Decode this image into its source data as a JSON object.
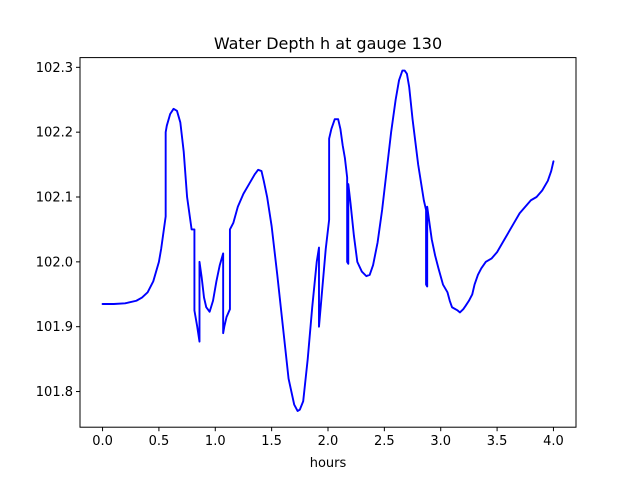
{
  "chart_data": {
    "type": "line",
    "title": "Water Depth h at gauge 130",
    "xlabel": "hours",
    "ylabel": "",
    "xlim": [
      -0.2,
      4.2
    ],
    "ylim": [
      101.745,
      102.315
    ],
    "xticks": [
      0.0,
      0.5,
      1.0,
      1.5,
      2.0,
      2.5,
      3.0,
      3.5,
      4.0
    ],
    "xtick_labels": [
      "0.0",
      "0.5",
      "1.0",
      "1.5",
      "2.0",
      "2.5",
      "3.0",
      "3.5",
      "4.0"
    ],
    "yticks": [
      101.8,
      101.9,
      102.0,
      102.1,
      102.2,
      102.3
    ],
    "ytick_labels": [
      "101.8",
      "101.9",
      "102.0",
      "102.1",
      "102.2",
      "102.3"
    ],
    "grid": false,
    "series": [
      {
        "color": "#0000ff",
        "x": [
          0.0,
          0.1,
          0.2,
          0.3,
          0.35,
          0.4,
          0.45,
          0.5,
          0.52,
          0.54,
          0.56,
          0.56,
          0.57,
          0.6,
          0.63,
          0.66,
          0.69,
          0.72,
          0.75,
          0.79,
          0.815,
          0.815,
          0.84,
          0.86,
          0.86,
          0.88,
          0.9,
          0.92,
          0.95,
          0.98,
          1.01,
          1.04,
          1.07,
          1.07,
          1.08,
          1.1,
          1.13,
          1.13,
          1.16,
          1.2,
          1.25,
          1.3,
          1.35,
          1.38,
          1.41,
          1.43,
          1.46,
          1.5,
          1.55,
          1.6,
          1.65,
          1.7,
          1.73,
          1.75,
          1.78,
          1.82,
          1.86,
          1.9,
          1.92,
          1.92,
          1.95,
          1.98,
          2.01,
          2.01,
          2.03,
          2.06,
          2.09,
          2.11,
          2.13,
          2.15,
          2.17,
          2.17,
          2.18,
          2.18,
          2.2,
          2.23,
          2.26,
          2.3,
          2.34,
          2.37,
          2.4,
          2.44,
          2.48,
          2.52,
          2.56,
          2.6,
          2.63,
          2.66,
          2.68,
          2.7,
          2.72,
          2.75,
          2.8,
          2.85,
          2.87,
          2.87,
          2.88,
          2.88,
          2.9,
          2.92,
          2.95,
          2.98,
          3.02,
          3.06,
          3.08,
          3.1,
          3.15,
          3.17,
          3.2,
          3.22,
          3.25,
          3.28,
          3.3,
          3.33,
          3.36,
          3.4,
          3.45,
          3.5,
          3.55,
          3.6,
          3.65,
          3.7,
          3.75,
          3.8,
          3.85,
          3.9,
          3.95,
          3.98,
          4.0
        ],
        "y": [
          101.935,
          101.935,
          101.936,
          101.94,
          101.945,
          101.953,
          101.97,
          102.0,
          102.02,
          102.045,
          102.07,
          102.2,
          102.21,
          102.228,
          102.236,
          102.233,
          102.215,
          102.17,
          102.1,
          102.05,
          102.05,
          101.925,
          101.9,
          101.877,
          102.0,
          101.975,
          101.945,
          101.93,
          101.923,
          101.94,
          101.97,
          101.995,
          102.013,
          101.89,
          101.9,
          101.915,
          101.927,
          102.05,
          102.06,
          102.085,
          102.105,
          102.12,
          102.135,
          102.142,
          102.14,
          102.125,
          102.1,
          102.055,
          101.98,
          101.9,
          101.82,
          101.78,
          101.77,
          101.772,
          101.785,
          101.85,
          101.93,
          102.0,
          102.022,
          101.9,
          101.96,
          102.02,
          102.065,
          102.19,
          102.205,
          102.22,
          102.22,
          102.205,
          102.18,
          102.16,
          102.13,
          102.0,
          101.997,
          102.12,
          102.09,
          102.04,
          102.0,
          101.985,
          101.978,
          101.98,
          101.995,
          102.03,
          102.08,
          102.14,
          102.2,
          102.25,
          102.28,
          102.295,
          102.295,
          102.29,
          102.27,
          102.22,
          102.15,
          102.095,
          102.08,
          101.965,
          101.962,
          102.085,
          102.06,
          102.035,
          102.01,
          101.99,
          101.965,
          101.953,
          101.94,
          101.93,
          101.925,
          101.922,
          101.927,
          101.932,
          101.94,
          101.95,
          101.965,
          101.98,
          101.99,
          102.0,
          102.005,
          102.015,
          102.03,
          102.045,
          102.06,
          102.075,
          102.085,
          102.095,
          102.1,
          102.11,
          102.125,
          102.14,
          102.155
        ]
      }
    ]
  }
}
